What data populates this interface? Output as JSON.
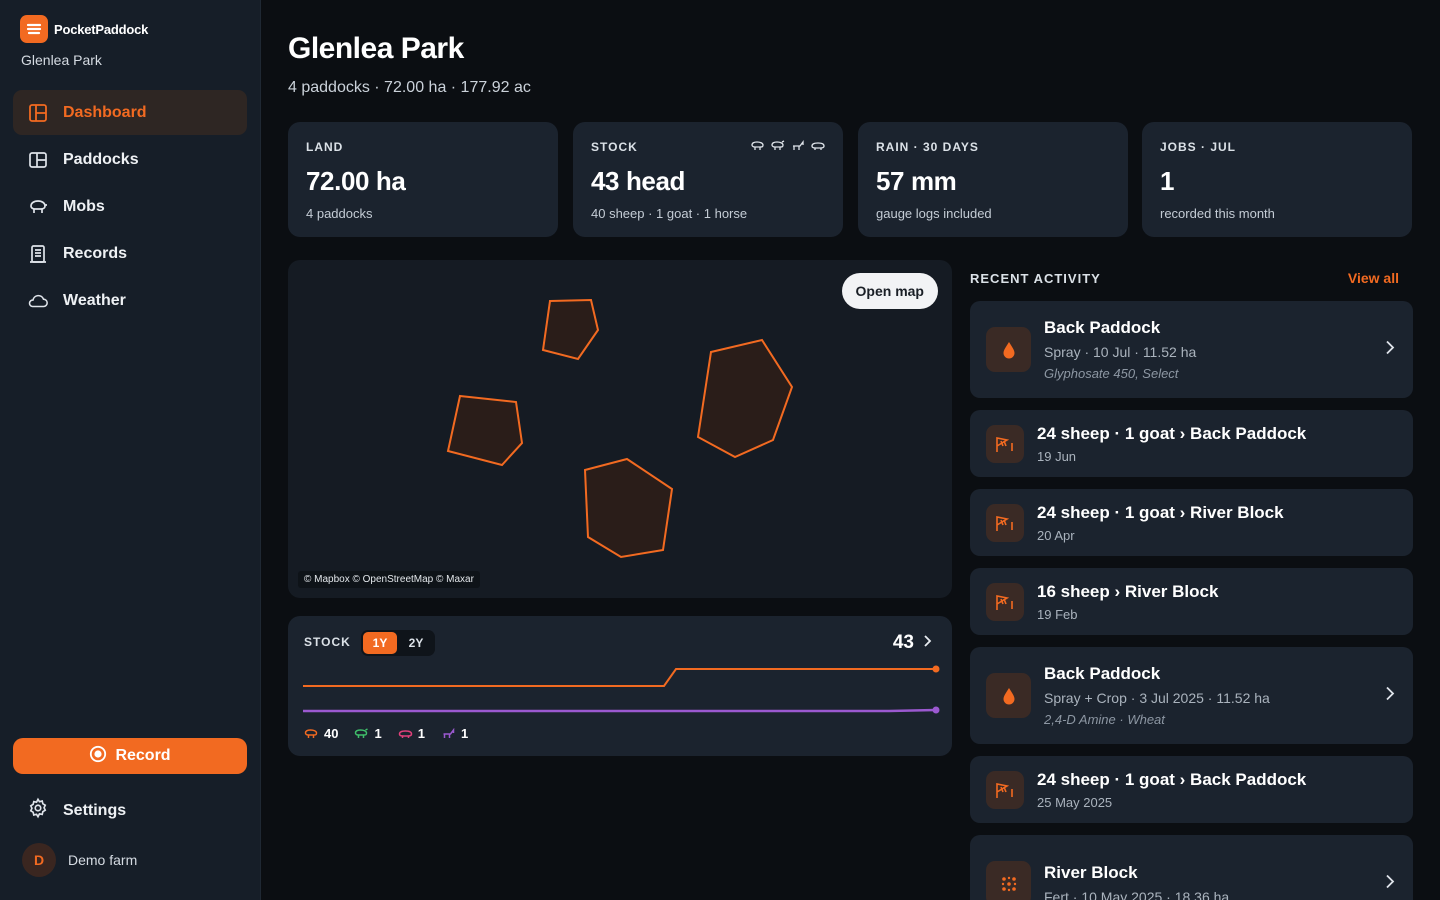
{
  "app": {
    "name": "PocketPaddock",
    "farm": "Glenlea Park"
  },
  "nav": [
    {
      "label": "Dashboard",
      "icon": "dashboard-icon",
      "active": true
    },
    {
      "label": "Paddocks",
      "icon": "paddocks-icon"
    },
    {
      "label": "Mobs",
      "icon": "sheep-icon"
    },
    {
      "label": "Records",
      "icon": "records-icon"
    },
    {
      "label": "Weather",
      "icon": "cloud-icon"
    }
  ],
  "record_label": "Record",
  "settings_label": "Settings",
  "user": {
    "initial": "D",
    "name": "Demo farm"
  },
  "header": {
    "title": "Glenlea Park",
    "subtitle": "4 paddocks · 72.00 ha · 177.92 ac"
  },
  "stats": [
    {
      "label": "LAND",
      "value": "72.00 ha",
      "sub": "4 paddocks"
    },
    {
      "label": "STOCK",
      "value": "43 head",
      "sub": "40 sheep · 1 goat · 1 horse"
    },
    {
      "label": "RAIN · 30 DAYS",
      "value": "57 mm",
      "sub": "gauge logs included"
    },
    {
      "label": "JOBS · JUL",
      "value": "1",
      "sub": "recorded this month"
    }
  ],
  "map": {
    "button": "Open map",
    "attribution": "© Mapbox © OpenStreetMap © Maxar"
  },
  "stock_chart": {
    "label": "STOCK",
    "ranges": [
      "1Y",
      "2Y"
    ],
    "selected_range": "1Y",
    "total": "43",
    "legend": [
      {
        "icon": "sheep-icon",
        "count": "40",
        "color": "#f26a21"
      },
      {
        "icon": "goat-icon",
        "count": "1",
        "color": "#3fbf6a"
      },
      {
        "icon": "cattle-icon",
        "count": "1",
        "color": "#e0407a"
      },
      {
        "icon": "horse-icon",
        "count": "1",
        "color": "#9b59d0"
      }
    ]
  },
  "activity": {
    "heading": "RECENT ACTIVITY",
    "view_all": "View all",
    "items": [
      {
        "kind": "spray",
        "title": "Back Paddock",
        "sub": "Spray · 10 Jul · 11.52 ha",
        "note": "Glyphosate 450, Select"
      },
      {
        "kind": "move",
        "title": "24 sheep · 1 goat › Back Paddock",
        "sub": "19 Jun"
      },
      {
        "kind": "move",
        "title": "24 sheep · 1 goat › River Block",
        "sub": "20 Apr"
      },
      {
        "kind": "move",
        "title": "16 sheep › River Block",
        "sub": "19 Feb"
      },
      {
        "kind": "spray",
        "title": "Back Paddock",
        "sub": "Spray + Crop · 3 Jul 2025 · 11.52 ha",
        "note": "2,4-D Amine · Wheat"
      },
      {
        "kind": "move",
        "title": "24 sheep · 1 goat › Back Paddock",
        "sub": "25 May 2025"
      },
      {
        "kind": "fert",
        "title": "River Block",
        "sub": "Fert · 10 May 2025 · 18.36 ha",
        "note": ""
      }
    ]
  },
  "colors": {
    "accent": "#f26a21",
    "background": "#0b0e12",
    "card": "#1b232e",
    "sidebar": "#161e28"
  }
}
